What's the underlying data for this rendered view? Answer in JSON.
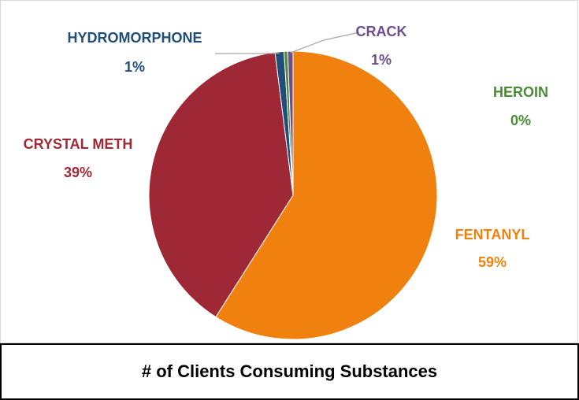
{
  "chart_data": {
    "type": "pie",
    "title": "",
    "slices": [
      {
        "name": "FENTANYL",
        "value": 59,
        "label": "59%",
        "color": "#f0810f"
      },
      {
        "name": "CRYSTAL METH",
        "value": 39,
        "label": "39%",
        "color": "#9e2835"
      },
      {
        "name": "HYDROMORPHONE",
        "value": 1,
        "label": "1%",
        "color": "#1f4e79"
      },
      {
        "name": "HEROIN",
        "value": 0.4,
        "label": "0%",
        "color": "#4a8b34"
      },
      {
        "name": "CRACK",
        "value": 0.6,
        "label": "1%",
        "color": "#6a4f8c"
      }
    ],
    "legend": "none"
  },
  "caption": "# of Clients Consuming Substances"
}
